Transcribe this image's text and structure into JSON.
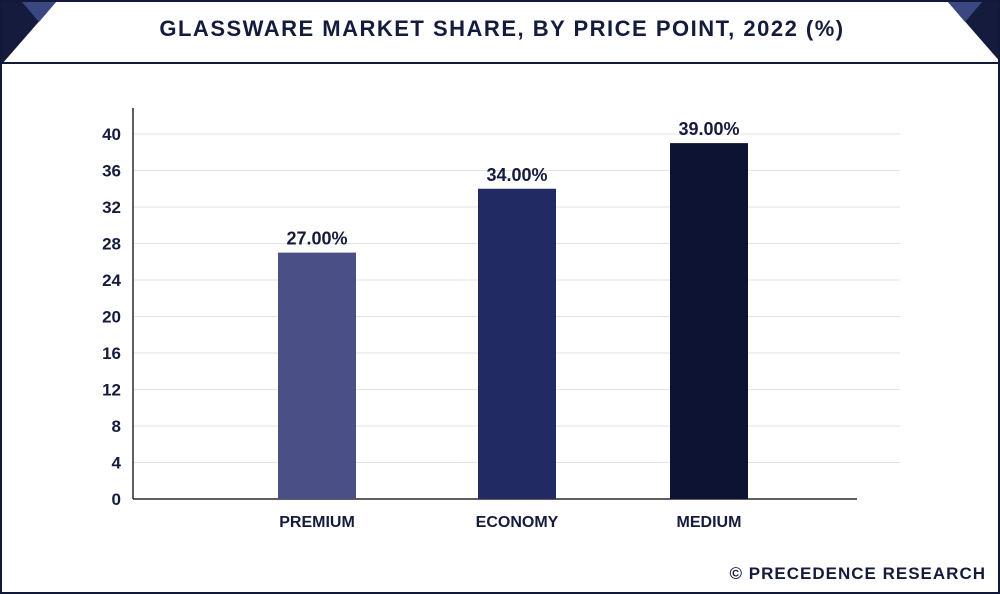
{
  "header": {
    "title": "GLASSWARE MARKET SHARE, BY PRICE POINT, 2022 (%)"
  },
  "footer": {
    "credit": "© PRECEDENCE RESEARCH"
  },
  "colors": {
    "frame": "#12183a",
    "header_corner": "#151b3d",
    "header_corner_light": "#3b4780",
    "grid": "#e3e3e3",
    "axis": "#2a2a2a"
  },
  "chart_data": {
    "type": "bar",
    "title": "GLASSWARE MARKET SHARE, BY PRICE POINT, 2022 (%)",
    "categories": [
      "PREMIUM",
      "ECONOMY",
      "MEDIUM"
    ],
    "values": [
      27.0,
      34.0,
      39.0
    ],
    "data_labels": [
      "27.00%",
      "34.00%",
      "39.00%"
    ],
    "bar_colors": [
      "#4a5086",
      "#222a64",
      "#0c1333"
    ],
    "ylim": [
      0,
      40
    ],
    "yticks": [
      0,
      4,
      8,
      12,
      16,
      20,
      24,
      28,
      32,
      36,
      40
    ],
    "xlabel": "",
    "ylabel": "",
    "grid": true,
    "legend": "none"
  }
}
